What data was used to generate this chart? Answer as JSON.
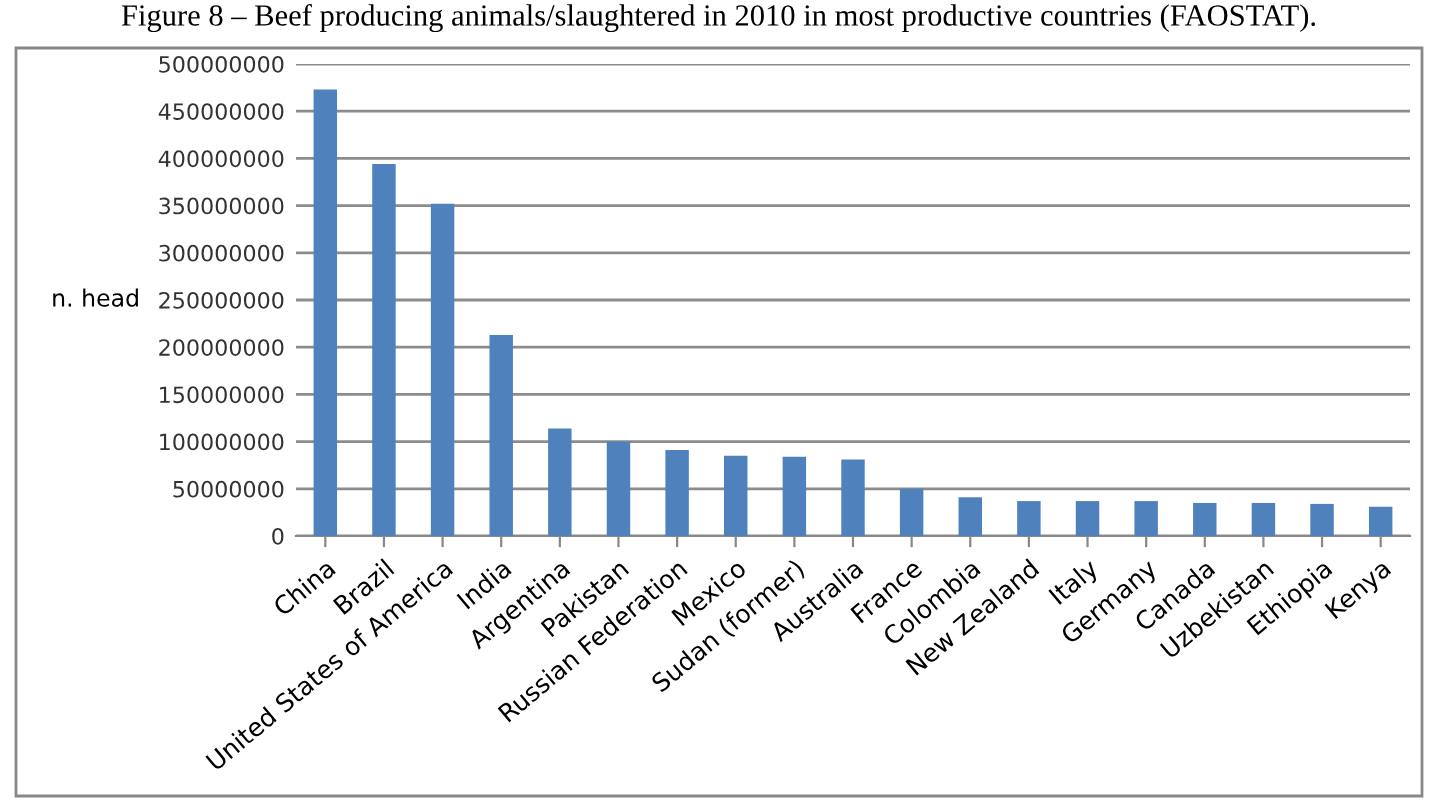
{
  "chart_data": {
    "type": "bar",
    "title": "Figure 8 – Beef producing animals/slaughtered in 2010 in most productive countries (FAOSTAT).",
    "ylabel": "n. head",
    "categories": [
      "China",
      "Brazil",
      "United States of America",
      "India",
      "Argentina",
      "Pakistan",
      "Russian Federation",
      "Mexico",
      "Sudan (former)",
      "Australia",
      "France",
      "Colombia",
      "New Zealand",
      "Italy",
      "Germany",
      "Canada",
      "Uzbekistan",
      "Ethiopia",
      "Kenya"
    ],
    "values": [
      473000000,
      394000000,
      352000000,
      213000000,
      114000000,
      100000000,
      91000000,
      85000000,
      84000000,
      81000000,
      50000000,
      41000000,
      37000000,
      37000000,
      37000000,
      35000000,
      35000000,
      34000000,
      31000000
    ],
    "color": "#4f81bd",
    "ylim": [
      0,
      500000000
    ],
    "yticks": [
      0,
      50000000,
      100000000,
      150000000,
      200000000,
      250000000,
      300000000,
      350000000,
      400000000,
      450000000,
      500000000
    ],
    "grid": "y"
  }
}
